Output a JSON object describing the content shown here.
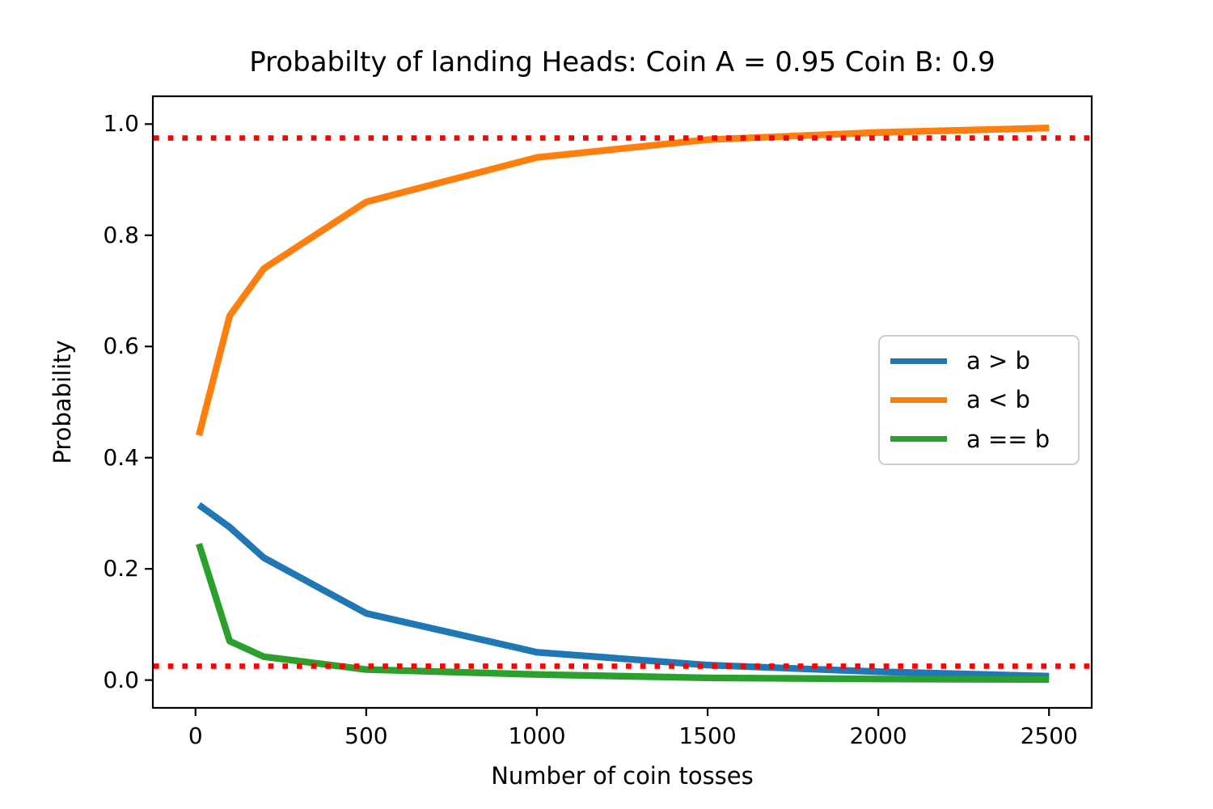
{
  "chart_data": {
    "type": "line",
    "title": "Probabilty of landing Heads: Coin A = 0.95 Coin B: 0.9",
    "xlabel": "Number of coin tosses",
    "ylabel": "Probability",
    "x": [
      10,
      100,
      200,
      500,
      1000,
      1500,
      2000,
      2500
    ],
    "series": [
      {
        "name": "a > b",
        "color": "#1f77b4",
        "values": [
          0.315,
          0.275,
          0.22,
          0.12,
          0.05,
          0.027,
          0.015,
          0.007
        ]
      },
      {
        "name": "a < b",
        "color": "#ff7f0e",
        "values": [
          0.44,
          0.655,
          0.74,
          0.86,
          0.94,
          0.972,
          0.985,
          0.993
        ]
      },
      {
        "name": "a == b",
        "color": "#2ca02c",
        "values": [
          0.245,
          0.07,
          0.042,
          0.019,
          0.01,
          0.004,
          0.002,
          0.001
        ]
      }
    ],
    "reference_lines": [
      {
        "y": 0.975,
        "color": "#ff0000",
        "style": "dotted"
      },
      {
        "y": 0.025,
        "color": "#ff0000",
        "style": "dotted"
      }
    ],
    "x_ticks": [
      "0",
      "500",
      "1000",
      "1500",
      "2000",
      "2500"
    ],
    "x_tick_values": [
      0,
      500,
      1000,
      1500,
      2000,
      2500
    ],
    "y_ticks": [
      "0.0",
      "0.2",
      "0.4",
      "0.6",
      "0.8",
      "1.0"
    ],
    "y_tick_values": [
      0.0,
      0.2,
      0.4,
      0.6,
      0.8,
      1.0
    ],
    "xlim": [
      -125,
      2625
    ],
    "ylim": [
      -0.05,
      1.05
    ],
    "grid": false,
    "legend_position": "center right",
    "axis_color": "#000000"
  }
}
